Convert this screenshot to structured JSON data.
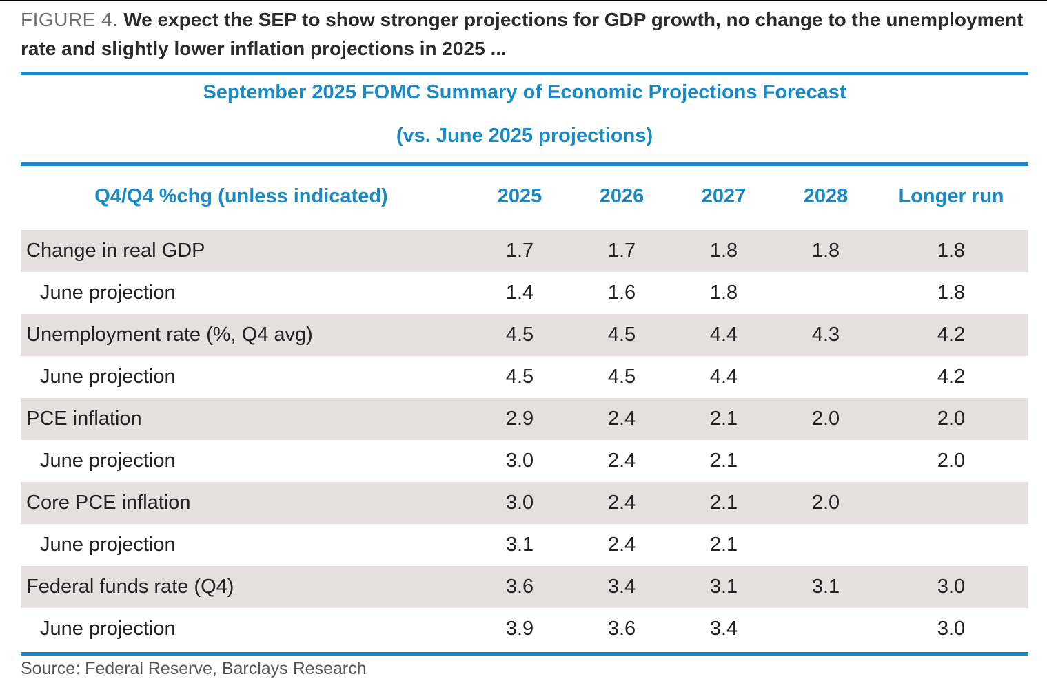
{
  "colors": {
    "accent": "#1a8ac6",
    "row_shade": "#e6dfdf",
    "caption_label": "#6e6e6e"
  },
  "caption": {
    "label": "FIGURE 4.",
    "text": " We expect the SEP to show stronger projections for GDP growth, no change to the unemployment rate and slightly lower inflation projections in 2025 ..."
  },
  "table": {
    "title": "September 2025 FOMC Summary of Economic Projections Forecast",
    "subtitle": "(vs. June 2025 projections)",
    "columns": [
      "Q4/Q4 %chg (unless indicated)",
      "2025",
      "2026",
      "2027",
      "2028",
      "Longer run"
    ],
    "rows": [
      {
        "label": "Change in real GDP",
        "values": [
          "1.7",
          "1.7",
          "1.8",
          "1.8",
          "1.8"
        ]
      },
      {
        "label": "June projection",
        "values": [
          "1.4",
          "1.6",
          "1.8",
          "",
          "1.8"
        ]
      },
      {
        "label": "Unemployment rate (%, Q4 avg)",
        "values": [
          "4.5",
          "4.5",
          "4.4",
          "4.3",
          "4.2"
        ]
      },
      {
        "label": "June projection",
        "values": [
          "4.5",
          "4.5",
          "4.4",
          "",
          "4.2"
        ]
      },
      {
        "label": "PCE inflation",
        "values": [
          "2.9",
          "2.4",
          "2.1",
          "2.0",
          "2.0"
        ]
      },
      {
        "label": "June projection",
        "values": [
          "3.0",
          "2.4",
          "2.1",
          "",
          "2.0"
        ]
      },
      {
        "label": "Core PCE inflation",
        "values": [
          "3.0",
          "2.4",
          "2.1",
          "2.0",
          ""
        ]
      },
      {
        "label": "June projection",
        "values": [
          "3.1",
          "2.4",
          "2.1",
          "",
          ""
        ]
      },
      {
        "label": "Federal funds rate (Q4)",
        "values": [
          "3.6",
          "3.4",
          "3.1",
          "3.1",
          "3.0"
        ]
      },
      {
        "label": "June projection",
        "values": [
          "3.9",
          "3.6",
          "3.4",
          "",
          "3.0"
        ]
      }
    ]
  },
  "source": "Source: Federal Reserve, Barclays Research"
}
